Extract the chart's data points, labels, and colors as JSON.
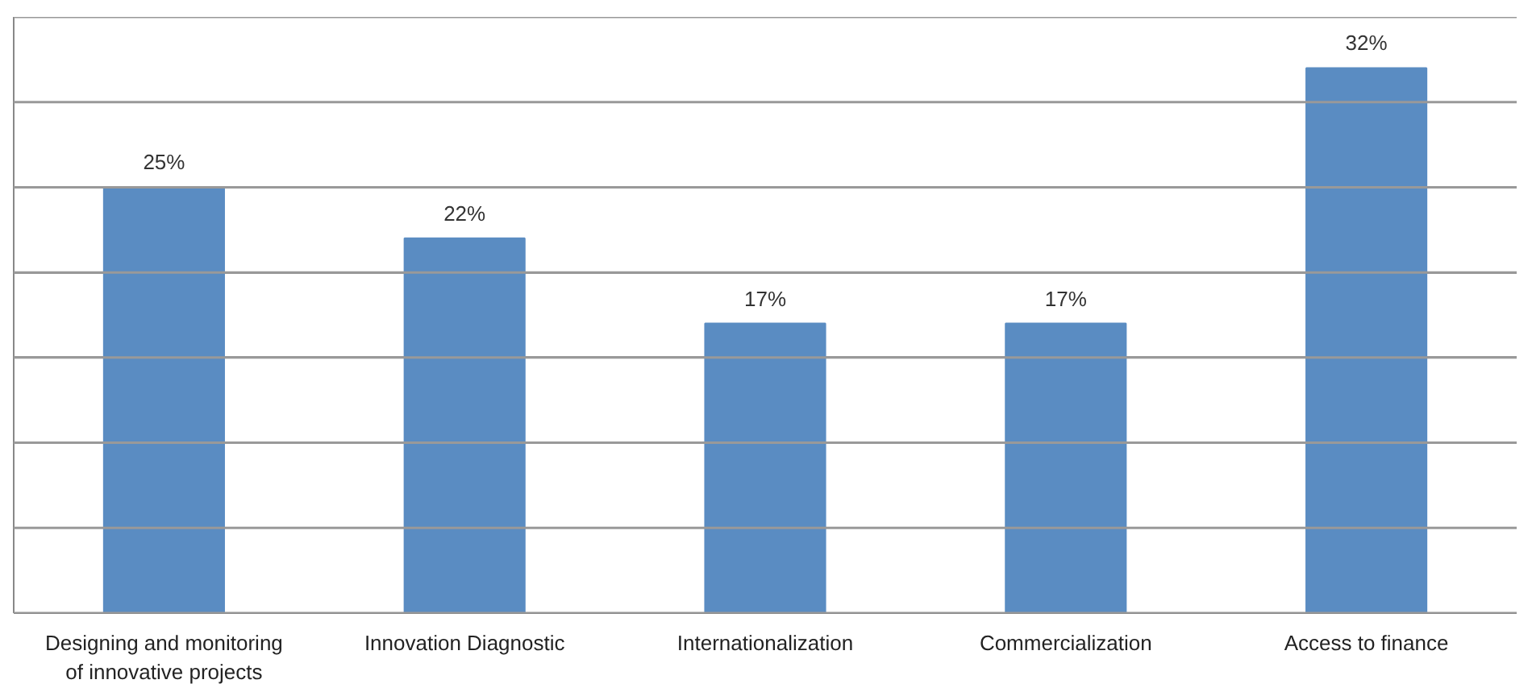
{
  "chart_data": {
    "type": "bar",
    "categories": [
      "Designing and monitoring\nof innovative projects",
      "Innovation Diagnostic",
      "Internationalization",
      "Commercialization",
      "Access to finance"
    ],
    "values": [
      25,
      22,
      17,
      17,
      32
    ],
    "value_labels": [
      "25%",
      "22%",
      "17%",
      "17%",
      "32%"
    ],
    "color": "#5a8cc2",
    "ylim": [
      0,
      35
    ],
    "yticks": [
      {
        "value": 0,
        "label": null
      },
      {
        "value": 5,
        "label": null
      },
      {
        "value": 10,
        "label": null
      },
      {
        "value": 15,
        "label": null
      },
      {
        "value": 20,
        "label": null
      },
      {
        "value": 25,
        "label": null
      },
      {
        "value": 30,
        "label": null
      },
      {
        "value": 35,
        "label": null
      }
    ],
    "grid": "y",
    "tick_labels": "x"
  }
}
